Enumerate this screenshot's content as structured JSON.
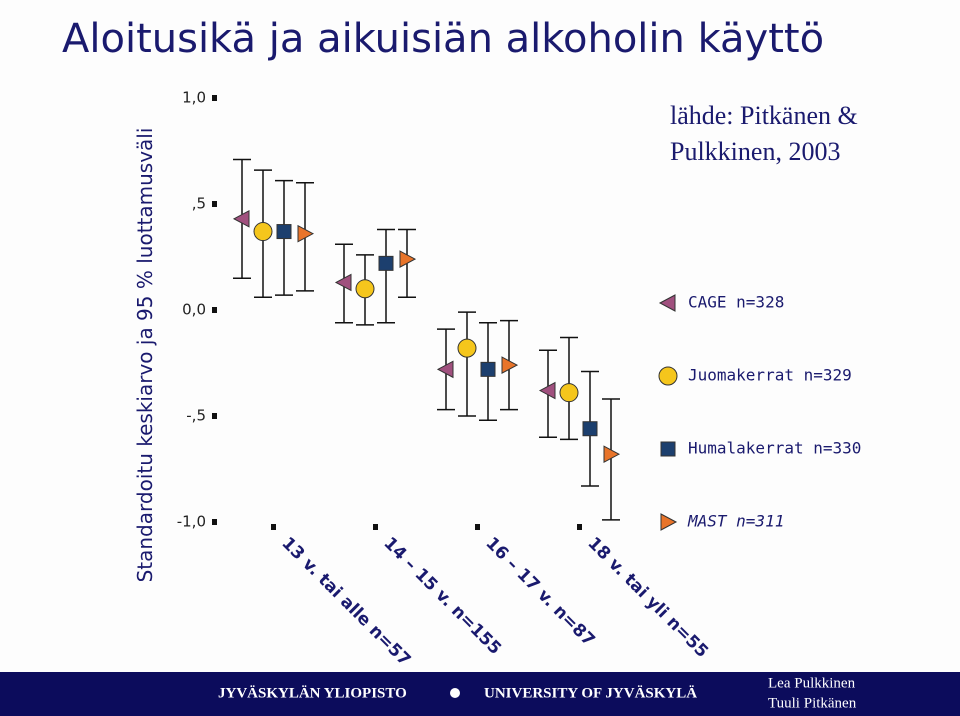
{
  "chart_data": {
    "type": "errorbar",
    "title": "Aloitusikä ja aikuisiän alkoholin käyttö",
    "ylabel": "Standardoitu keskiarvo ja 95 % luottamusväli",
    "source": [
      "lähde: Pitkänen &",
      "Pulkkinen, 2003"
    ],
    "categories": [
      "13 v. tai alle n=57",
      "14 – 15 v. n=155",
      "16 – 17 v. n=87",
      "18 v. tai yli n=55"
    ],
    "ylim": [
      -1.0,
      1.0
    ],
    "yticks": [
      {
        "value": 1.0,
        "label": "1,0"
      },
      {
        "value": 0.5,
        "label": ",5"
      },
      {
        "value": 0.0,
        "label": "0,0"
      },
      {
        "value": -0.5,
        "label": "-,5"
      },
      {
        "value": -1.0,
        "label": "-1,0"
      }
    ],
    "series": [
      {
        "name": "CAGE n=328",
        "color": "#a0507e",
        "marker": "triangle-left",
        "values": [
          0.43,
          0.13,
          -0.28,
          -0.38
        ],
        "low": [
          0.15,
          -0.06,
          -0.47,
          -0.6
        ],
        "high": [
          0.71,
          0.31,
          -0.09,
          -0.19
        ]
      },
      {
        "name": "Juomakerrat n=329",
        "color": "#f5c61c",
        "marker": "circle",
        "values": [
          0.37,
          0.1,
          -0.18,
          -0.39
        ],
        "low": [
          0.06,
          -0.07,
          -0.5,
          -0.61
        ],
        "high": [
          0.66,
          0.26,
          -0.01,
          -0.13
        ]
      },
      {
        "name": "Humalakerrat n=330",
        "color": "#1c3f6e",
        "marker": "square",
        "values": [
          0.37,
          0.22,
          -0.28,
          -0.56
        ],
        "low": [
          0.07,
          -0.06,
          -0.52,
          -0.83
        ],
        "high": [
          0.61,
          0.38,
          -0.06,
          -0.29
        ]
      },
      {
        "name": "MAST n=311",
        "color": "#e8742a",
        "marker": "triangle-right",
        "values": [
          0.36,
          0.24,
          -0.26,
          -0.68
        ],
        "low": [
          0.09,
          0.06,
          -0.47,
          -0.99
        ],
        "high": [
          0.6,
          0.38,
          -0.05,
          -0.42
        ]
      }
    ]
  },
  "footer": {
    "left": "JYVÄSKYLÄN YLIOPISTO",
    "middle": "UNIVERSITY OF JYVÄSKYLÄ",
    "authors": [
      "Lea Pulkkinen",
      "Tuuli Pitkänen"
    ]
  }
}
